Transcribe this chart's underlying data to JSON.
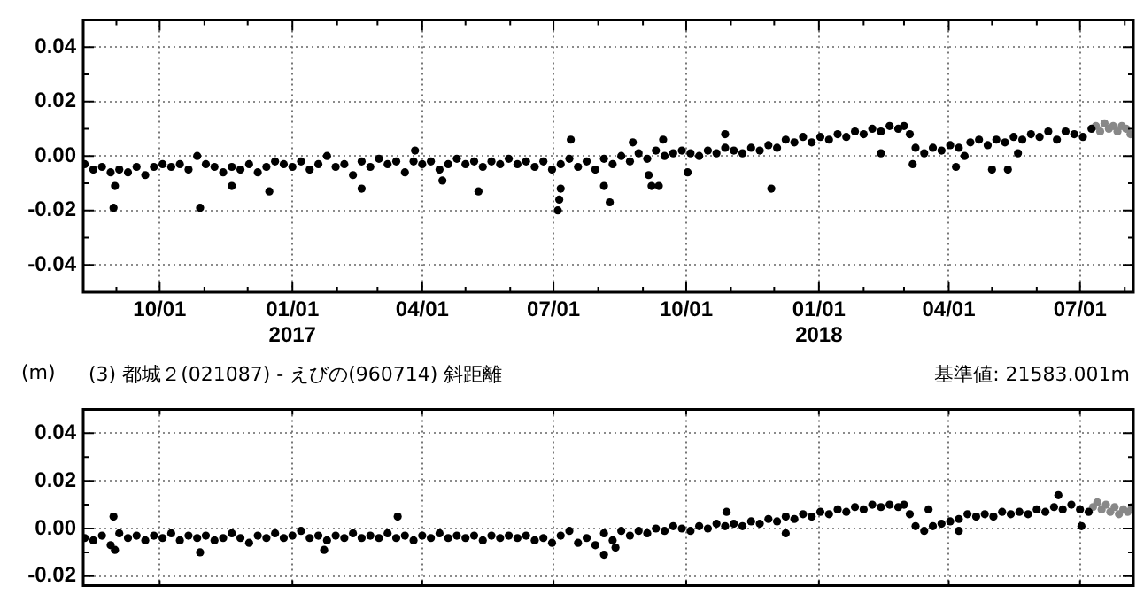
{
  "chart_data": [
    {
      "type": "scatter",
      "marker": "circle",
      "grid": true,
      "legend": false,
      "xlim": [
        "2016-08-09",
        "2018-08-07"
      ],
      "xticks": [
        {
          "value": "2016-09-01",
          "label": null
        },
        {
          "value": "2016-10-01",
          "label": "10/01"
        },
        {
          "value": "2016-11-01",
          "label": null
        },
        {
          "value": "2016-12-01",
          "label": null
        },
        {
          "value": "2017-01-01",
          "label": "01/01\n2017"
        },
        {
          "value": "2017-02-01",
          "label": null
        },
        {
          "value": "2017-03-01",
          "label": null
        },
        {
          "value": "2017-04-01",
          "label": "04/01"
        },
        {
          "value": "2017-05-01",
          "label": null
        },
        {
          "value": "2017-06-01",
          "label": null
        },
        {
          "value": "2017-07-01",
          "label": "07/01"
        },
        {
          "value": "2017-08-01",
          "label": null
        },
        {
          "value": "2017-09-01",
          "label": null
        },
        {
          "value": "2017-10-01",
          "label": "10/01"
        },
        {
          "value": "2017-11-01",
          "label": null
        },
        {
          "value": "2017-12-01",
          "label": null
        },
        {
          "value": "2018-01-01",
          "label": "01/01\n2018"
        },
        {
          "value": "2018-02-01",
          "label": null
        },
        {
          "value": "2018-03-01",
          "label": null
        },
        {
          "value": "2018-04-01",
          "label": "04/01"
        },
        {
          "value": "2018-05-01",
          "label": null
        },
        {
          "value": "2018-06-01",
          "label": null
        },
        {
          "value": "2018-07-01",
          "label": "07/01"
        },
        {
          "value": "2018-08-01",
          "label": null
        }
      ],
      "ylim": [
        -0.05,
        0.05
      ],
      "yticks": [
        {
          "value": -0.04,
          "label": "-0.04"
        },
        {
          "value": -0.03,
          "label": null
        },
        {
          "value": -0.02,
          "label": "-0.02"
        },
        {
          "value": -0.01,
          "label": null
        },
        {
          "value": 0,
          "label": "0.00"
        },
        {
          "value": 0.01,
          "label": null
        },
        {
          "value": 0.02,
          "label": "0.02"
        },
        {
          "value": 0.03,
          "label": null
        },
        {
          "value": 0.04,
          "label": "0.04"
        }
      ],
      "series": [
        {
          "color": "#000000",
          "x": [
            "2016-08-10",
            "2016-08-16",
            "2016-08-22",
            "2016-08-28",
            "2016-09-03",
            "2016-09-09",
            "2016-09-15",
            "2016-09-21",
            "2016-09-27",
            "2016-10-03",
            "2016-10-09",
            "2016-10-15",
            "2016-10-21",
            "2016-10-27",
            "2016-11-02",
            "2016-11-08",
            "2016-11-14",
            "2016-11-20",
            "2016-11-26",
            "2016-12-02",
            "2016-12-08",
            "2016-12-14",
            "2016-12-20",
            "2016-12-26",
            "2017-01-01",
            "2017-01-07",
            "2017-01-13",
            "2017-01-19",
            "2017-01-25",
            "2017-01-31",
            "2017-02-06",
            "2017-02-12",
            "2017-02-18",
            "2017-02-24",
            "2017-03-02",
            "2017-03-08",
            "2017-03-14",
            "2017-03-20",
            "2017-03-26",
            "2017-04-01",
            "2017-04-07",
            "2017-04-13",
            "2017-04-19",
            "2017-04-25",
            "2017-05-01",
            "2017-05-07",
            "2017-05-13",
            "2017-05-19",
            "2017-05-25",
            "2017-05-31",
            "2017-06-06",
            "2017-06-12",
            "2017-06-18",
            "2017-06-24",
            "2017-06-30",
            "2017-07-06",
            "2017-07-12",
            "2017-07-18",
            "2017-07-24",
            "2017-07-30",
            "2017-08-05",
            "2017-08-11",
            "2017-08-17",
            "2017-08-23",
            "2017-08-29",
            "2017-09-04",
            "2017-09-10",
            "2017-09-16",
            "2017-09-22",
            "2017-09-28",
            "2017-10-04",
            "2017-10-10",
            "2017-10-16",
            "2017-10-22",
            "2017-10-28",
            "2017-11-03",
            "2017-11-09",
            "2017-11-15",
            "2017-11-21",
            "2017-11-27",
            "2017-12-03",
            "2017-12-09",
            "2017-12-15",
            "2017-12-21",
            "2017-12-27",
            "2018-01-02",
            "2018-01-08",
            "2018-01-14",
            "2018-01-20",
            "2018-01-26",
            "2018-02-01",
            "2018-02-07",
            "2018-02-13",
            "2018-02-19",
            "2018-02-25",
            "2018-03-01",
            "2018-03-05",
            "2018-03-09",
            "2018-03-15",
            "2018-03-21",
            "2018-03-27",
            "2018-04-02",
            "2018-04-08",
            "2018-04-12",
            "2018-04-16",
            "2018-04-22",
            "2018-04-28",
            "2018-05-04",
            "2018-05-10",
            "2018-05-16",
            "2018-05-22",
            "2018-05-28",
            "2018-06-03",
            "2018-06-09",
            "2018-06-15",
            "2018-06-21",
            "2018-06-27",
            "2018-07-03",
            "2018-07-09",
            "2016-08-30",
            "2016-08-31",
            "2016-10-29",
            "2016-11-20",
            "2016-12-16",
            "2017-02-18",
            "2017-03-27",
            "2017-04-15",
            "2017-05-10",
            "2017-07-04",
            "2017-07-05",
            "2017-07-06",
            "2017-07-13",
            "2017-08-05",
            "2017-08-09",
            "2017-08-25",
            "2017-09-05",
            "2017-09-07",
            "2017-09-12",
            "2017-09-15",
            "2017-10-02",
            "2017-10-28",
            "2017-11-29",
            "2018-02-13",
            "2018-03-07",
            "2018-04-06",
            "2018-05-01",
            "2018-05-12",
            "2018-05-19"
          ],
          "values": [
            -0.003,
            -0.005,
            -0.004,
            -0.006,
            -0.005,
            -0.006,
            -0.004,
            -0.007,
            -0.004,
            -0.003,
            -0.004,
            -0.003,
            -0.005,
            0.0,
            -0.003,
            -0.004,
            -0.006,
            -0.004,
            -0.005,
            -0.003,
            -0.006,
            -0.004,
            -0.002,
            -0.003,
            -0.004,
            -0.002,
            -0.005,
            -0.003,
            0.0,
            -0.004,
            -0.003,
            -0.007,
            -0.002,
            -0.004,
            -0.001,
            -0.003,
            -0.002,
            -0.006,
            -0.002,
            -0.003,
            -0.002,
            -0.005,
            -0.003,
            -0.001,
            -0.003,
            -0.002,
            -0.004,
            -0.002,
            -0.003,
            -0.001,
            -0.003,
            -0.002,
            -0.004,
            -0.002,
            -0.005,
            -0.003,
            -0.001,
            -0.004,
            -0.002,
            -0.005,
            -0.001,
            -0.003,
            0.0,
            -0.002,
            0.001,
            -0.001,
            0.002,
            0.0,
            0.001,
            0.002,
            0.001,
            0.0,
            0.002,
            0.001,
            0.003,
            0.002,
            0.001,
            0.003,
            0.002,
            0.004,
            0.003,
            0.006,
            0.005,
            0.007,
            0.005,
            0.007,
            0.006,
            0.008,
            0.007,
            0.009,
            0.008,
            0.01,
            0.009,
            0.011,
            0.01,
            0.011,
            0.008,
            0.003,
            0.001,
            0.003,
            0.002,
            0.004,
            0.003,
            0.0,
            0.005,
            0.006,
            0.004,
            0.006,
            0.005,
            0.007,
            0.006,
            0.008,
            0.007,
            0.009,
            0.006,
            0.009,
            0.008,
            0.007,
            0.01,
            -0.019,
            -0.011,
            -0.019,
            -0.011,
            -0.013,
            -0.012,
            0.002,
            -0.009,
            -0.013,
            -0.02,
            -0.016,
            -0.012,
            0.006,
            -0.011,
            -0.017,
            0.005,
            -0.007,
            -0.011,
            -0.011,
            0.006,
            -0.006,
            0.008,
            -0.012,
            0.001,
            -0.003,
            -0.004,
            -0.005,
            -0.005,
            0.001
          ]
        },
        {
          "color": "#888888",
          "x": [
            "2018-07-12",
            "2018-07-15",
            "2018-07-18",
            "2018-07-21",
            "2018-07-24",
            "2018-07-27",
            "2018-07-30",
            "2018-08-02",
            "2018-08-05"
          ],
          "values": [
            0.011,
            0.009,
            0.012,
            0.01,
            0.011,
            0.009,
            0.011,
            0.01,
            0.008
          ]
        }
      ]
    },
    {
      "type": "scatter",
      "marker": "circle",
      "grid": true,
      "legend": false,
      "tick_labels": "y",
      "ylabel": "(m)",
      "title": "(3) 都城２(021087) - えびの(960714) 斜距離",
      "subtitle": "基準値: 21583.001m",
      "xlim": [
        "2016-08-09",
        "2018-08-07"
      ],
      "xticks": [
        {
          "value": "2016-10-01",
          "label": null
        },
        {
          "value": "2017-01-01",
          "label": null
        },
        {
          "value": "2017-04-01",
          "label": null
        },
        {
          "value": "2017-07-01",
          "label": null
        },
        {
          "value": "2017-10-01",
          "label": null
        },
        {
          "value": "2018-01-01",
          "label": null
        },
        {
          "value": "2018-04-01",
          "label": null
        },
        {
          "value": "2018-07-01",
          "label": null
        }
      ],
      "ylim": [
        -0.024,
        0.05
      ],
      "yticks": [
        {
          "value": -0.02,
          "label": "-0.02"
        },
        {
          "value": -0.01,
          "label": null
        },
        {
          "value": 0,
          "label": "0.00"
        },
        {
          "value": 0.01,
          "label": null
        },
        {
          "value": 0.02,
          "label": "0.02"
        },
        {
          "value": 0.03,
          "label": null
        },
        {
          "value": 0.04,
          "label": "0.04"
        }
      ],
      "series": [
        {
          "color": "#000000",
          "x": [
            "2016-08-10",
            "2016-08-16",
            "2016-08-22",
            "2016-08-28",
            "2016-09-03",
            "2016-09-09",
            "2016-09-15",
            "2016-09-21",
            "2016-09-27",
            "2016-10-03",
            "2016-10-09",
            "2016-10-15",
            "2016-10-21",
            "2016-10-27",
            "2016-11-02",
            "2016-11-08",
            "2016-11-14",
            "2016-11-20",
            "2016-11-26",
            "2016-12-02",
            "2016-12-08",
            "2016-12-14",
            "2016-12-20",
            "2016-12-26",
            "2017-01-01",
            "2017-01-07",
            "2017-01-13",
            "2017-01-19",
            "2017-01-25",
            "2017-01-31",
            "2017-02-06",
            "2017-02-12",
            "2017-02-18",
            "2017-02-24",
            "2017-03-02",
            "2017-03-08",
            "2017-03-14",
            "2017-03-20",
            "2017-03-26",
            "2017-04-01",
            "2017-04-07",
            "2017-04-13",
            "2017-04-19",
            "2017-04-25",
            "2017-05-01",
            "2017-05-07",
            "2017-05-13",
            "2017-05-19",
            "2017-05-25",
            "2017-05-31",
            "2017-06-06",
            "2017-06-12",
            "2017-06-18",
            "2017-06-24",
            "2017-06-30",
            "2017-07-06",
            "2017-07-12",
            "2017-07-18",
            "2017-07-24",
            "2017-07-30",
            "2017-08-05",
            "2017-08-11",
            "2017-08-17",
            "2017-08-23",
            "2017-08-29",
            "2017-09-04",
            "2017-09-10",
            "2017-09-16",
            "2017-09-22",
            "2017-09-28",
            "2017-10-04",
            "2017-10-10",
            "2017-10-16",
            "2017-10-22",
            "2017-10-28",
            "2017-11-03",
            "2017-11-09",
            "2017-11-15",
            "2017-11-21",
            "2017-11-27",
            "2017-12-03",
            "2017-12-09",
            "2017-12-15",
            "2017-12-21",
            "2017-12-27",
            "2018-01-02",
            "2018-01-08",
            "2018-01-14",
            "2018-01-20",
            "2018-01-26",
            "2018-02-01",
            "2018-02-07",
            "2018-02-13",
            "2018-02-19",
            "2018-02-25",
            "2018-03-01",
            "2018-03-05",
            "2018-03-09",
            "2018-03-15",
            "2018-03-21",
            "2018-03-27",
            "2018-04-02",
            "2018-04-08",
            "2018-04-14",
            "2018-04-20",
            "2018-04-26",
            "2018-05-02",
            "2018-05-08",
            "2018-05-14",
            "2018-05-20",
            "2018-05-26",
            "2018-06-01",
            "2018-06-07",
            "2018-06-13",
            "2018-06-19",
            "2018-06-25",
            "2018-07-01",
            "2018-07-07",
            "2016-08-30",
            "2016-08-31",
            "2016-10-29",
            "2017-03-15",
            "2017-01-23",
            "2017-08-05",
            "2017-08-13",
            "2017-10-29",
            "2017-12-09",
            "2018-03-18",
            "2018-04-08",
            "2018-06-16",
            "2018-07-02"
          ],
          "values": [
            -0.004,
            -0.005,
            -0.003,
            -0.007,
            -0.002,
            -0.004,
            -0.003,
            -0.005,
            -0.003,
            -0.004,
            -0.002,
            -0.005,
            -0.003,
            -0.004,
            -0.003,
            -0.005,
            -0.004,
            -0.002,
            -0.004,
            -0.006,
            -0.003,
            -0.004,
            -0.002,
            -0.004,
            -0.003,
            -0.001,
            -0.004,
            -0.003,
            -0.005,
            -0.003,
            -0.004,
            -0.002,
            -0.004,
            -0.003,
            -0.004,
            -0.002,
            -0.004,
            -0.003,
            -0.005,
            -0.003,
            -0.004,
            -0.002,
            -0.004,
            -0.003,
            -0.004,
            -0.003,
            -0.005,
            -0.003,
            -0.004,
            -0.003,
            -0.004,
            -0.003,
            -0.005,
            -0.004,
            -0.006,
            -0.003,
            -0.001,
            -0.006,
            -0.004,
            -0.007,
            -0.002,
            -0.005,
            -0.001,
            -0.003,
            -0.001,
            -0.002,
            0.0,
            -0.001,
            0.001,
            0.0,
            -0.001,
            0.001,
            0.0,
            0.002,
            0.001,
            0.002,
            0.001,
            0.003,
            0.002,
            0.004,
            0.003,
            0.005,
            0.004,
            0.006,
            0.005,
            0.007,
            0.006,
            0.008,
            0.007,
            0.009,
            0.008,
            0.01,
            0.009,
            0.01,
            0.009,
            0.01,
            0.006,
            0.001,
            -0.001,
            0.001,
            0.002,
            0.003,
            0.004,
            0.006,
            0.005,
            0.006,
            0.005,
            0.007,
            0.006,
            0.007,
            0.006,
            0.008,
            0.007,
            0.009,
            0.008,
            0.01,
            0.008,
            0.007,
            0.005,
            -0.009,
            -0.01,
            0.005,
            -0.009,
            -0.011,
            -0.008,
            0.007,
            -0.002,
            0.008,
            -0.001,
            0.014,
            0.001
          ]
        },
        {
          "color": "#888888",
          "x": [
            "2018-07-10",
            "2018-07-13",
            "2018-07-16",
            "2018-07-19",
            "2018-07-22",
            "2018-07-25",
            "2018-07-28",
            "2018-07-31",
            "2018-08-03",
            "2018-08-06"
          ],
          "values": [
            0.009,
            0.011,
            0.008,
            0.01,
            0.007,
            0.009,
            0.006,
            0.008,
            0.007,
            0.009
          ]
        }
      ]
    }
  ]
}
